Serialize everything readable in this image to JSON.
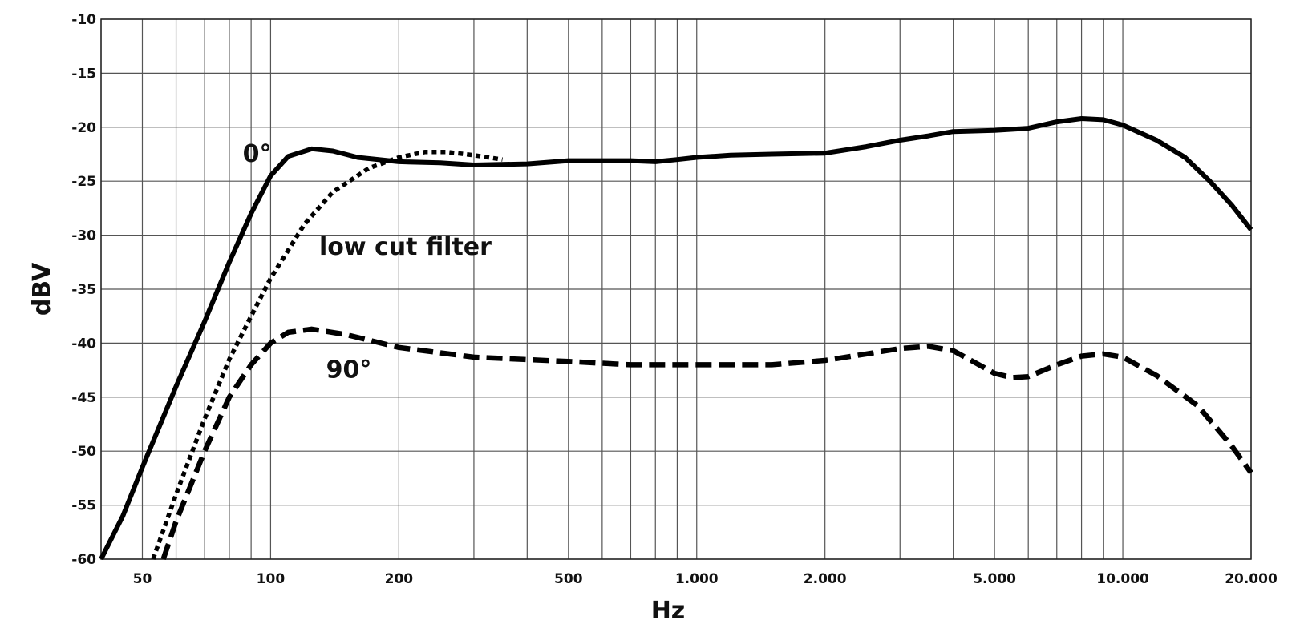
{
  "chart_data": {
    "type": "line",
    "xlabel": "Hz",
    "ylabel": "dBV",
    "xscale": "log",
    "xlim": [
      40,
      20000
    ],
    "ylim": [
      -60,
      -10
    ],
    "grid": true,
    "yticks": [
      -10,
      -15,
      -20,
      -25,
      -30,
      -35,
      -40,
      -45,
      -50,
      -55,
      -60
    ],
    "xticks": [
      {
        "value": 50,
        "label": "50"
      },
      {
        "value": 100,
        "label": "100"
      },
      {
        "value": 200,
        "label": "200"
      },
      {
        "value": 500,
        "label": "500"
      },
      {
        "value": 1000,
        "label": "1.000"
      },
      {
        "value": 2000,
        "label": "2.000"
      },
      {
        "value": 5000,
        "label": "5.000"
      },
      {
        "value": 10000,
        "label": "10.000"
      },
      {
        "value": 20000,
        "label": "20.000"
      }
    ],
    "x_gridlines": [
      40,
      50,
      60,
      70,
      80,
      90,
      100,
      200,
      300,
      400,
      500,
      600,
      700,
      800,
      900,
      1000,
      2000,
      3000,
      4000,
      5000,
      6000,
      7000,
      8000,
      9000,
      10000,
      20000
    ],
    "annotations": [
      {
        "text": "0°",
        "x": 86,
        "y": -23.2
      },
      {
        "text": "low cut filter",
        "x": 130,
        "y": -31.8
      },
      {
        "text": "90°",
        "x": 135,
        "y": -43.2
      }
    ],
    "series": [
      {
        "style": "solid",
        "color": "#000000",
        "points": [
          [
            40,
            -60
          ],
          [
            45,
            -56
          ],
          [
            50,
            -51.5
          ],
          [
            60,
            -44
          ],
          [
            70,
            -38
          ],
          [
            80,
            -32.5
          ],
          [
            90,
            -28
          ],
          [
            100,
            -24.5
          ],
          [
            110,
            -22.7
          ],
          [
            125,
            -22
          ],
          [
            140,
            -22.2
          ],
          [
            160,
            -22.8
          ],
          [
            200,
            -23.2
          ],
          [
            250,
            -23.3
          ],
          [
            300,
            -23.5
          ],
          [
            400,
            -23.4
          ],
          [
            500,
            -23.1
          ],
          [
            600,
            -23.1
          ],
          [
            700,
            -23.1
          ],
          [
            800,
            -23.2
          ],
          [
            900,
            -23
          ],
          [
            1000,
            -22.8
          ],
          [
            1200,
            -22.6
          ],
          [
            1500,
            -22.5
          ],
          [
            2000,
            -22.4
          ],
          [
            2500,
            -21.8
          ],
          [
            3000,
            -21.2
          ],
          [
            3500,
            -20.8
          ],
          [
            4000,
            -20.4
          ],
          [
            5000,
            -20.3
          ],
          [
            6000,
            -20.1
          ],
          [
            7000,
            -19.5
          ],
          [
            8000,
            -19.2
          ],
          [
            9000,
            -19.3
          ],
          [
            10000,
            -19.8
          ],
          [
            12000,
            -21.2
          ],
          [
            14000,
            -22.8
          ],
          [
            16000,
            -25
          ],
          [
            18000,
            -27.2
          ],
          [
            20000,
            -29.5
          ]
        ]
      },
      {
        "style": "dotted",
        "color": "#000000",
        "points": [
          [
            53,
            -60
          ],
          [
            60,
            -54
          ],
          [
            70,
            -47
          ],
          [
            80,
            -41.5
          ],
          [
            90,
            -37.5
          ],
          [
            100,
            -34
          ],
          [
            120,
            -29
          ],
          [
            140,
            -26
          ],
          [
            170,
            -23.8
          ],
          [
            200,
            -22.8
          ],
          [
            230,
            -22.3
          ],
          [
            260,
            -22.3
          ],
          [
            300,
            -22.6
          ],
          [
            350,
            -23
          ]
        ]
      },
      {
        "style": "dashed",
        "color": "#000000",
        "points": [
          [
            56,
            -60
          ],
          [
            60,
            -56.5
          ],
          [
            70,
            -50
          ],
          [
            80,
            -45
          ],
          [
            90,
            -42
          ],
          [
            100,
            -40
          ],
          [
            110,
            -39
          ],
          [
            125,
            -38.7
          ],
          [
            150,
            -39.2
          ],
          [
            200,
            -40.4
          ],
          [
            300,
            -41.3
          ],
          [
            500,
            -41.7
          ],
          [
            700,
            -42
          ],
          [
            1000,
            -42
          ],
          [
            1500,
            -42
          ],
          [
            2000,
            -41.6
          ],
          [
            2500,
            -41
          ],
          [
            3000,
            -40.5
          ],
          [
            3500,
            -40.3
          ],
          [
            4000,
            -40.7
          ],
          [
            4500,
            -41.8
          ],
          [
            5000,
            -42.8
          ],
          [
            5500,
            -43.2
          ],
          [
            6000,
            -43.1
          ],
          [
            7000,
            -42
          ],
          [
            8000,
            -41.2
          ],
          [
            9000,
            -41
          ],
          [
            10000,
            -41.3
          ],
          [
            12000,
            -43
          ],
          [
            15000,
            -45.8
          ],
          [
            18000,
            -49.5
          ],
          [
            20000,
            -52
          ]
        ]
      }
    ]
  }
}
